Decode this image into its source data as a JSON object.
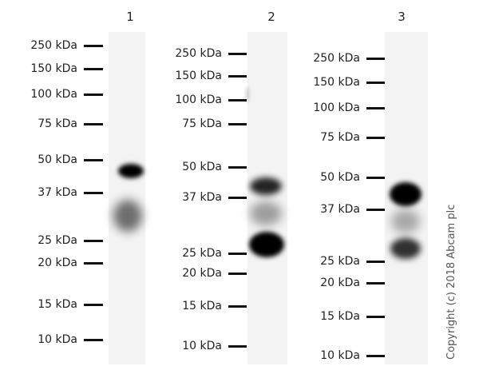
{
  "lanes": [
    {
      "label": "1",
      "markers": [
        "250 kDa",
        "150 kDa",
        "100 kDa",
        "75 kDa",
        "50 kDa",
        "37 kDa",
        "25 kDa",
        "20 kDa",
        "15 kDa",
        "10 kDa"
      ]
    },
    {
      "label": "2",
      "markers": [
        "250 kDa",
        "150 kDa",
        "100 kDa",
        "75 kDa",
        "50 kDa",
        "37 kDa",
        "25 kDa",
        "20 kDa",
        "15 kDa",
        "10 kDa"
      ]
    },
    {
      "label": "3",
      "markers": [
        "250 kDa",
        "150 kDa",
        "100 kDa",
        "75 kDa",
        "50 kDa",
        "37 kDa",
        "25 kDa",
        "20 kDa",
        "15 kDa",
        "10 kDa"
      ]
    }
  ],
  "copyright": "Copyright (c) 2018 Abcam plc",
  "colors": {
    "band": "#000000",
    "membrane": "#f3f3f3"
  }
}
